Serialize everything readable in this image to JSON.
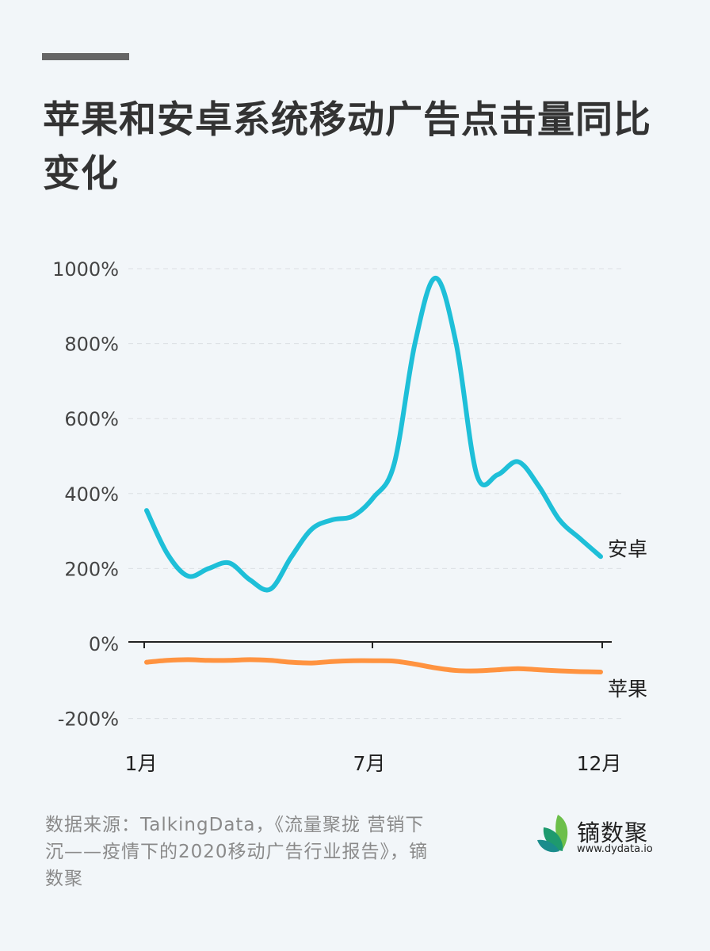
{
  "header": {
    "title": "苹果和安卓系统移动广告点击量同比变化"
  },
  "chart_data": {
    "type": "line",
    "title": "苹果和安卓系统移动广告点击量同比变化",
    "xlabel": "",
    "ylabel": "",
    "ylim": [
      -200,
      1000
    ],
    "y_ticks": [
      "1000%",
      "800%",
      "600%",
      "400%",
      "200%",
      "0%",
      "-200%"
    ],
    "y_tick_values": [
      1000,
      800,
      600,
      400,
      200,
      0,
      -200
    ],
    "x_ticks": [
      "1月",
      "7月",
      "12月"
    ],
    "grid": true,
    "legend_position": "inline-end",
    "x": [
      0,
      0.5,
      1,
      1.5,
      2,
      2.5,
      3,
      3.5,
      4,
      4.5,
      5,
      5.5,
      6,
      6.5,
      7,
      7.5,
      8,
      8.5,
      9,
      9.5,
      10,
      10.5,
      11
    ],
    "series": [
      {
        "name": "安卓",
        "color": "#1ebfd8",
        "values": [
          355,
          240,
          180,
          200,
          215,
          170,
          145,
          230,
          305,
          330,
          340,
          390,
          480,
          800,
          975,
          800,
          450,
          450,
          485,
          420,
          330,
          280,
          232
        ]
      },
      {
        "name": "苹果",
        "color": "#ff9340",
        "values": [
          -50,
          -45,
          -43,
          -45,
          -45,
          -43,
          -45,
          -50,
          -52,
          -48,
          -46,
          -46,
          -47,
          -55,
          -65,
          -72,
          -73,
          -70,
          -67,
          -70,
          -73,
          -75,
          -76
        ]
      }
    ]
  },
  "footer": {
    "source": "数据来源：TalkingData，《流量聚拢 营销下沉——疫情下的2020移动广告行业报告》，镝数聚",
    "brand_name": "镝数聚",
    "brand_url": "www.dydata.io"
  }
}
